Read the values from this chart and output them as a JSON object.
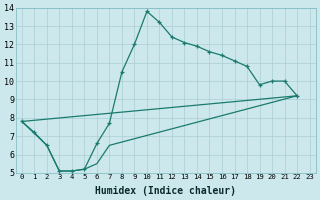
{
  "xlabel": "Humidex (Indice chaleur)",
  "bg_color": "#cce8ec",
  "grid_color": "#aacfd4",
  "line_color": "#1a7a6e",
  "xlim": [
    -0.5,
    23.5
  ],
  "ylim": [
    5,
    14
  ],
  "xticks": [
    0,
    1,
    2,
    3,
    4,
    5,
    6,
    7,
    8,
    9,
    10,
    11,
    12,
    13,
    14,
    15,
    16,
    17,
    18,
    19,
    20,
    21,
    22,
    23
  ],
  "yticks": [
    5,
    6,
    7,
    8,
    9,
    10,
    11,
    12,
    13,
    14
  ],
  "line1_x": [
    0,
    1,
    2,
    3,
    4,
    5,
    6,
    7,
    8,
    9,
    10,
    11,
    12,
    13,
    14,
    15,
    16,
    17,
    18,
    19,
    20,
    21,
    22
  ],
  "line1_y": [
    7.8,
    7.2,
    6.5,
    5.1,
    5.1,
    5.2,
    6.6,
    7.7,
    10.5,
    12.0,
    13.8,
    13.2,
    12.4,
    12.1,
    11.9,
    11.6,
    11.4,
    11.1,
    10.8,
    9.8,
    10.0,
    10.0,
    9.2
  ],
  "line2_x": [
    0,
    2,
    3,
    4,
    5,
    6,
    7,
    22
  ],
  "line2_y": [
    7.8,
    6.5,
    5.1,
    5.1,
    5.2,
    5.5,
    6.5,
    9.2
  ],
  "line3_x": [
    0,
    22
  ],
  "line3_y": [
    7.8,
    9.2
  ]
}
